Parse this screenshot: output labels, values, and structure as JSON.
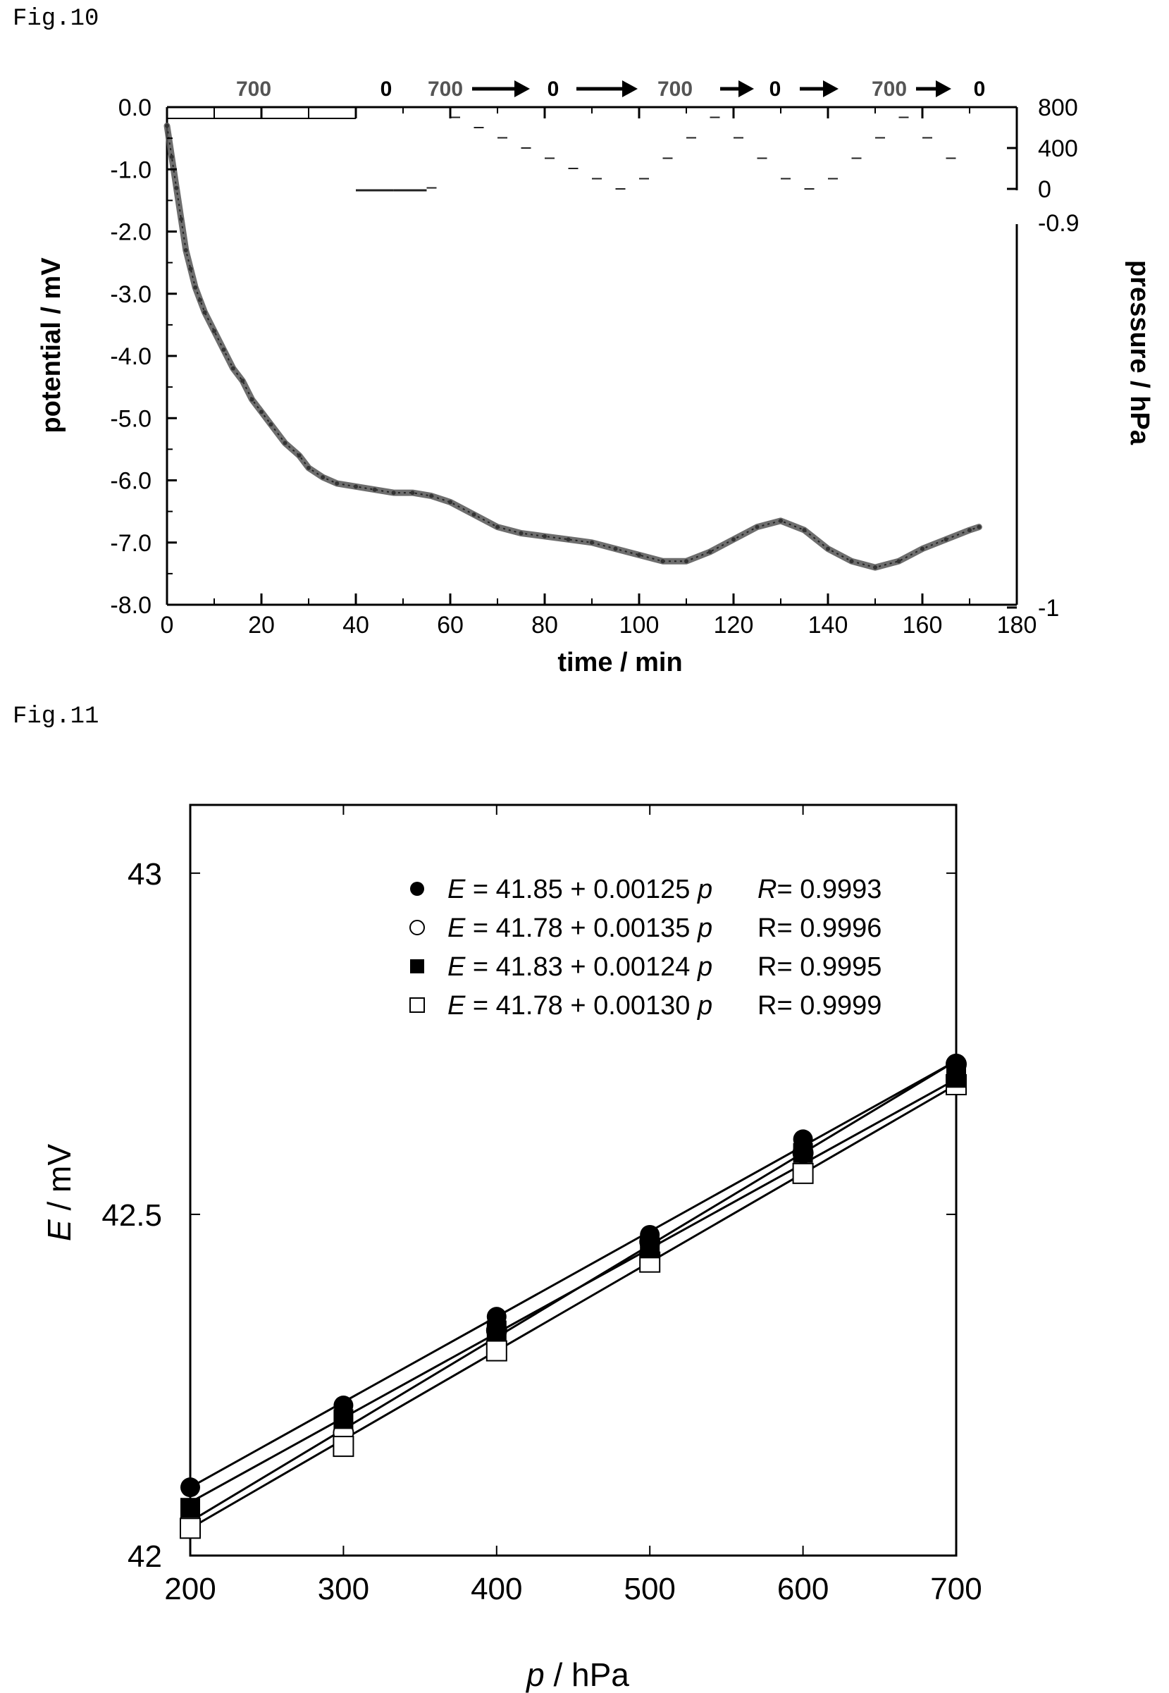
{
  "figures": {
    "fig10_label": "Fig.10",
    "fig11_label": "Fig.11"
  },
  "chart_data": [
    {
      "type": "line",
      "title": "",
      "xlabel": "time / min",
      "ylabel": "potential / mV",
      "y2label": "pressure / hPa",
      "xlim": [
        0,
        180
      ],
      "ylim": [
        -8.0,
        0.0
      ],
      "x_ticks": [
        "0",
        "20",
        "40",
        "60",
        "80",
        "100",
        "120",
        "140",
        "160",
        "180"
      ],
      "y_ticks": [
        "0.0",
        "-1.0",
        "-2.0",
        "-3.0",
        "-4.0",
        "-5.0",
        "-6.0",
        "-7.0",
        "-8.0"
      ],
      "y2_ticks": [
        "800",
        "400",
        "0",
        "-0.9",
        "-1"
      ],
      "pressure_sequence": [
        "700",
        "0",
        "700",
        "0",
        "700",
        "0",
        "700",
        "0"
      ],
      "series": [
        {
          "x": [
            0,
            1,
            2,
            3,
            4,
            5,
            6,
            7,
            8,
            10,
            12,
            14,
            16,
            18,
            20,
            22,
            25,
            28,
            30,
            33,
            36,
            40,
            44,
            48,
            52,
            56,
            60,
            65,
            70,
            75,
            80,
            85,
            90,
            95,
            100,
            105,
            110,
            115,
            120,
            125,
            130,
            135,
            140,
            145,
            150,
            155,
            160,
            165,
            170,
            172
          ],
          "values": [
            -0.3,
            -0.8,
            -1.3,
            -1.8,
            -2.3,
            -2.6,
            -2.9,
            -3.1,
            -3.3,
            -3.6,
            -3.9,
            -4.2,
            -4.4,
            -4.7,
            -4.9,
            -5.1,
            -5.4,
            -5.6,
            -5.8,
            -5.95,
            -6.05,
            -6.1,
            -6.15,
            -6.2,
            -6.2,
            -6.25,
            -6.35,
            -6.55,
            -6.75,
            -6.85,
            -6.9,
            -6.95,
            -7.0,
            -7.1,
            -7.2,
            -7.3,
            -7.3,
            -7.15,
            -6.95,
            -6.75,
            -6.65,
            -6.8,
            -7.1,
            -7.3,
            -7.4,
            -7.3,
            -7.1,
            -6.95,
            -6.8,
            -6.75
          ]
        }
      ],
      "pressure_steps": {
        "x": [
          40,
          48,
          55,
          60,
          65,
          70,
          75,
          80,
          85,
          90,
          95,
          100,
          105,
          110,
          115,
          120,
          125,
          130,
          135,
          140,
          145,
          150,
          155,
          160,
          165,
          170
        ],
        "values": [
          -0.9,
          -0.9,
          10,
          700,
          600,
          500,
          400,
          300,
          200,
          100,
          0,
          100,
          300,
          500,
          700,
          500,
          300,
          100,
          0,
          100,
          300,
          500,
          700,
          500,
          300,
          0
        ]
      }
    },
    {
      "type": "scatter",
      "title": "",
      "xlabel_italic": "p",
      "xlabel_rest": " / hPa",
      "ylabel_italic": "E",
      "ylabel_rest": " / mV",
      "xlim": [
        200,
        700
      ],
      "ylim": [
        42,
        43.1
      ],
      "x_ticks": [
        "200",
        "300",
        "400",
        "500",
        "600",
        "700"
      ],
      "y_ticks": [
        "42",
        "42.5",
        "43"
      ],
      "x": [
        200,
        300,
        400,
        500,
        600,
        700
      ],
      "series": [
        {
          "marker": "filled-circle",
          "values": [
            42.1,
            42.22,
            42.35,
            42.47,
            42.61,
            42.72
          ],
          "fit": [
            41.85,
            0.00125
          ],
          "eq_e": "E",
          "eq_mid": " = 41.85 + 0.00125 ",
          "eq_p": "p",
          "r_label": "R",
          "r_value": "= 0.9993"
        },
        {
          "marker": "open-circle",
          "values": [
            42.05,
            42.18,
            42.33,
            42.46,
            42.59,
            42.72
          ],
          "fit": [
            41.78,
            0.00135
          ],
          "eq_e": "E",
          "eq_mid": " = 41.78 + 0.00135 ",
          "eq_p": "p",
          "r_label": "R",
          "r_value": "= 0.9996"
        },
        {
          "marker": "filled-square",
          "values": [
            42.07,
            42.2,
            42.33,
            42.45,
            42.59,
            42.7
          ],
          "fit": [
            41.83,
            0.00124
          ],
          "eq_e": "E",
          "eq_mid": " = 41.83 + 0.00124 ",
          "eq_p": "p",
          "r_label": "R",
          "r_value": "= 0.9995"
        },
        {
          "marker": "open-square",
          "values": [
            42.04,
            42.16,
            42.3,
            42.43,
            42.56,
            42.69
          ],
          "fit": [
            41.78,
            0.0013
          ],
          "eq_e": "E",
          "eq_mid": " = 41.78 + 0.00130 ",
          "eq_p": "p",
          "r_label": "R",
          "r_value": "= 0.9999"
        }
      ]
    }
  ]
}
